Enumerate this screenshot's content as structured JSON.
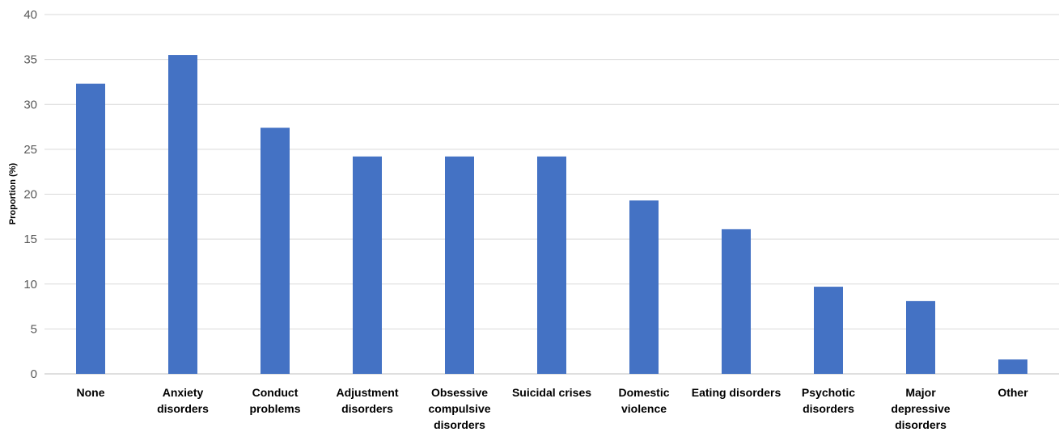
{
  "chart_data": {
    "type": "bar",
    "title": "",
    "xlabel": "",
    "ylabel": "Proportion (%)",
    "ylim": [
      0,
      40
    ],
    "yticks": [
      0,
      5,
      10,
      15,
      20,
      25,
      30,
      35,
      40
    ],
    "grid": true,
    "legend": "none",
    "bar_color": "#4472C4",
    "categories": [
      [
        "None"
      ],
      [
        "Anxiety",
        "disorders"
      ],
      [
        "Conduct",
        "problems"
      ],
      [
        "Adjustment",
        "disorders"
      ],
      [
        "Obsessive",
        "compulsive",
        "disorders"
      ],
      [
        "Suicidal crises"
      ],
      [
        "Domestic",
        "violence"
      ],
      [
        "Eating disorders"
      ],
      [
        "Psychotic",
        "disorders"
      ],
      [
        "Major",
        "depressive",
        "disorders"
      ],
      [
        "Other"
      ]
    ],
    "values": [
      32.3,
      35.5,
      27.4,
      24.2,
      24.2,
      24.2,
      19.3,
      16.1,
      9.7,
      8.1,
      1.6
    ]
  }
}
